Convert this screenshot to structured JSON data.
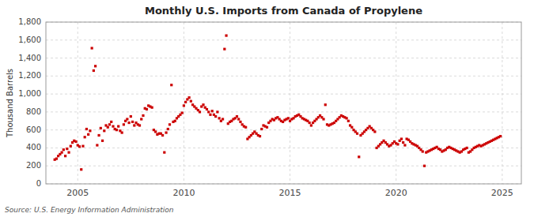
{
  "chart_data": {
    "type": "scatter",
    "title": "Monthly U.S. Imports from Canada of Propylene",
    "ylabel": "Thousand Barrels",
    "annotations": [
      "Source: U.S. Energy Information Administration"
    ],
    "color": "#cc0000",
    "marker": "square",
    "grid": true,
    "xlim": [
      2003.5,
      2025.9
    ],
    "xticks": [
      2005,
      2010,
      2015,
      2020,
      2025
    ],
    "ylim": [
      0,
      1800
    ],
    "yticks": [
      0,
      200,
      400,
      600,
      800,
      {
        "value": 1000,
        "label": "1,000"
      },
      {
        "value": 1200,
        "label": "1,200"
      },
      {
        "value": 1400,
        "label": "1,400"
      },
      {
        "value": 1600,
        "label": "1,600"
      },
      {
        "value": 1800,
        "label": "1,800"
      }
    ],
    "x": [
      2003.917,
      2004.0,
      2004.083,
      2004.167,
      2004.25,
      2004.333,
      2004.417,
      2004.5,
      2004.583,
      2004.667,
      2004.75,
      2004.833,
      2004.917,
      2005.0,
      2005.083,
      2005.167,
      2005.25,
      2005.333,
      2005.417,
      2005.5,
      2005.583,
      2005.667,
      2005.75,
      2005.833,
      2005.917,
      2006.0,
      2006.083,
      2006.167,
      2006.25,
      2006.333,
      2006.417,
      2006.5,
      2006.583,
      2006.667,
      2006.75,
      2006.833,
      2006.917,
      2007.0,
      2007.083,
      2007.167,
      2007.25,
      2007.333,
      2007.417,
      2007.5,
      2007.583,
      2007.667,
      2007.75,
      2007.833,
      2007.917,
      2008.0,
      2008.083,
      2008.167,
      2008.25,
      2008.333,
      2008.417,
      2008.5,
      2008.583,
      2008.667,
      2008.75,
      2008.833,
      2008.917,
      2009.0,
      2009.083,
      2009.167,
      2009.25,
      2009.333,
      2009.417,
      2009.5,
      2009.583,
      2009.667,
      2009.75,
      2009.833,
      2009.917,
      2010.0,
      2010.083,
      2010.167,
      2010.25,
      2010.333,
      2010.417,
      2010.5,
      2010.583,
      2010.667,
      2010.75,
      2010.833,
      2010.917,
      2011.0,
      2011.083,
      2011.167,
      2011.25,
      2011.333,
      2011.417,
      2011.5,
      2011.583,
      2011.667,
      2011.75,
      2011.833,
      2011.917,
      2012.0,
      2012.083,
      2012.167,
      2012.25,
      2012.333,
      2012.417,
      2012.5,
      2012.583,
      2012.667,
      2012.75,
      2012.833,
      2012.917,
      2013.0,
      2013.083,
      2013.167,
      2013.25,
      2013.333,
      2013.417,
      2013.5,
      2013.583,
      2013.667,
      2013.75,
      2013.833,
      2013.917,
      2014.0,
      2014.083,
      2014.167,
      2014.25,
      2014.333,
      2014.417,
      2014.5,
      2014.583,
      2014.667,
      2014.75,
      2014.833,
      2014.917,
      2015.0,
      2015.083,
      2015.167,
      2015.25,
      2015.333,
      2015.417,
      2015.5,
      2015.583,
      2015.667,
      2015.75,
      2015.833,
      2015.917,
      2016.0,
      2016.083,
      2016.167,
      2016.25,
      2016.333,
      2016.417,
      2016.5,
      2016.583,
      2016.667,
      2016.75,
      2016.833,
      2016.917,
      2017.0,
      2017.083,
      2017.167,
      2017.25,
      2017.333,
      2017.417,
      2017.5,
      2017.583,
      2017.667,
      2017.75,
      2017.833,
      2017.917,
      2018.0,
      2018.083,
      2018.167,
      2018.25,
      2018.333,
      2018.417,
      2018.5,
      2018.583,
      2018.667,
      2018.75,
      2018.833,
      2018.917,
      2019.0,
      2019.083,
      2019.167,
      2019.25,
      2019.333,
      2019.417,
      2019.5,
      2019.583,
      2019.667,
      2019.75,
      2019.833,
      2019.917,
      2020.0,
      2020.083,
      2020.167,
      2020.25,
      2020.333,
      2020.417,
      2020.5,
      2020.583,
      2020.667,
      2020.75,
      2020.833,
      2020.917,
      2021.0,
      2021.083,
      2021.167,
      2021.25,
      2021.333,
      2021.417,
      2021.5,
      2021.583,
      2021.667,
      2021.75,
      2021.833,
      2021.917,
      2022.0,
      2022.083,
      2022.167,
      2022.25,
      2022.333,
      2022.417,
      2022.5,
      2022.583,
      2022.667,
      2022.75,
      2022.833,
      2022.917,
      2023.0,
      2023.083,
      2023.167,
      2023.25,
      2023.333,
      2023.417,
      2023.5,
      2023.583,
      2023.667,
      2023.75,
      2023.833,
      2023.917,
      2024.0,
      2024.083,
      2024.167,
      2024.25,
      2024.333,
      2024.417,
      2024.5,
      2024.583,
      2024.667,
      2024.75,
      2024.833,
      2024.917
    ],
    "values": [
      270,
      280,
      310,
      330,
      350,
      380,
      310,
      390,
      350,
      420,
      460,
      480,
      470,
      430,
      415,
      160,
      420,
      520,
      610,
      550,
      590,
      1510,
      1260,
      1310,
      430,
      540,
      620,
      480,
      590,
      650,
      630,
      660,
      690,
      640,
      610,
      600,
      640,
      590,
      570,
      660,
      700,
      720,
      680,
      750,
      690,
      650,
      680,
      660,
      650,
      720,
      760,
      840,
      830,
      870,
      860,
      850,
      600,
      580,
      550,
      560,
      560,
      540,
      350,
      570,
      610,
      660,
      1100,
      690,
      700,
      730,
      750,
      770,
      790,
      870,
      910,
      940,
      960,
      920,
      880,
      860,
      840,
      820,
      800,
      860,
      880,
      850,
      830,
      800,
      770,
      810,
      770,
      750,
      800,
      730,
      700,
      720,
      1500,
      1650,
      670,
      690,
      700,
      720,
      730,
      750,
      720,
      690,
      660,
      640,
      630,
      500,
      520,
      540,
      560,
      580,
      560,
      540,
      530,
      610,
      650,
      640,
      630,
      680,
      700,
      720,
      710,
      730,
      740,
      720,
      700,
      690,
      710,
      720,
      730,
      700,
      720,
      730,
      750,
      760,
      770,
      750,
      730,
      720,
      710,
      700,
      680,
      650,
      680,
      700,
      720,
      740,
      760,
      740,
      720,
      880,
      660,
      650,
      660,
      670,
      680,
      700,
      720,
      740,
      760,
      750,
      740,
      730,
      700,
      650,
      630,
      600,
      580,
      560,
      300,
      540,
      560,
      580,
      600,
      620,
      640,
      620,
      600,
      580,
      400,
      420,
      440,
      460,
      480,
      460,
      440,
      420,
      430,
      450,
      470,
      450,
      440,
      480,
      500,
      460,
      430,
      500,
      490,
      470,
      450,
      440,
      430,
      420,
      400,
      380,
      360,
      200,
      350,
      360,
      370,
      380,
      390,
      400,
      410,
      390,
      380,
      360,
      370,
      380,
      400,
      410,
      400,
      390,
      380,
      370,
      360,
      350,
      360,
      380,
      390,
      400,
      350,
      360,
      380,
      400,
      410,
      420,
      430,
      420,
      430,
      440,
      450,
      460,
      470,
      480,
      490,
      500,
      510,
      520,
      530
    ]
  }
}
